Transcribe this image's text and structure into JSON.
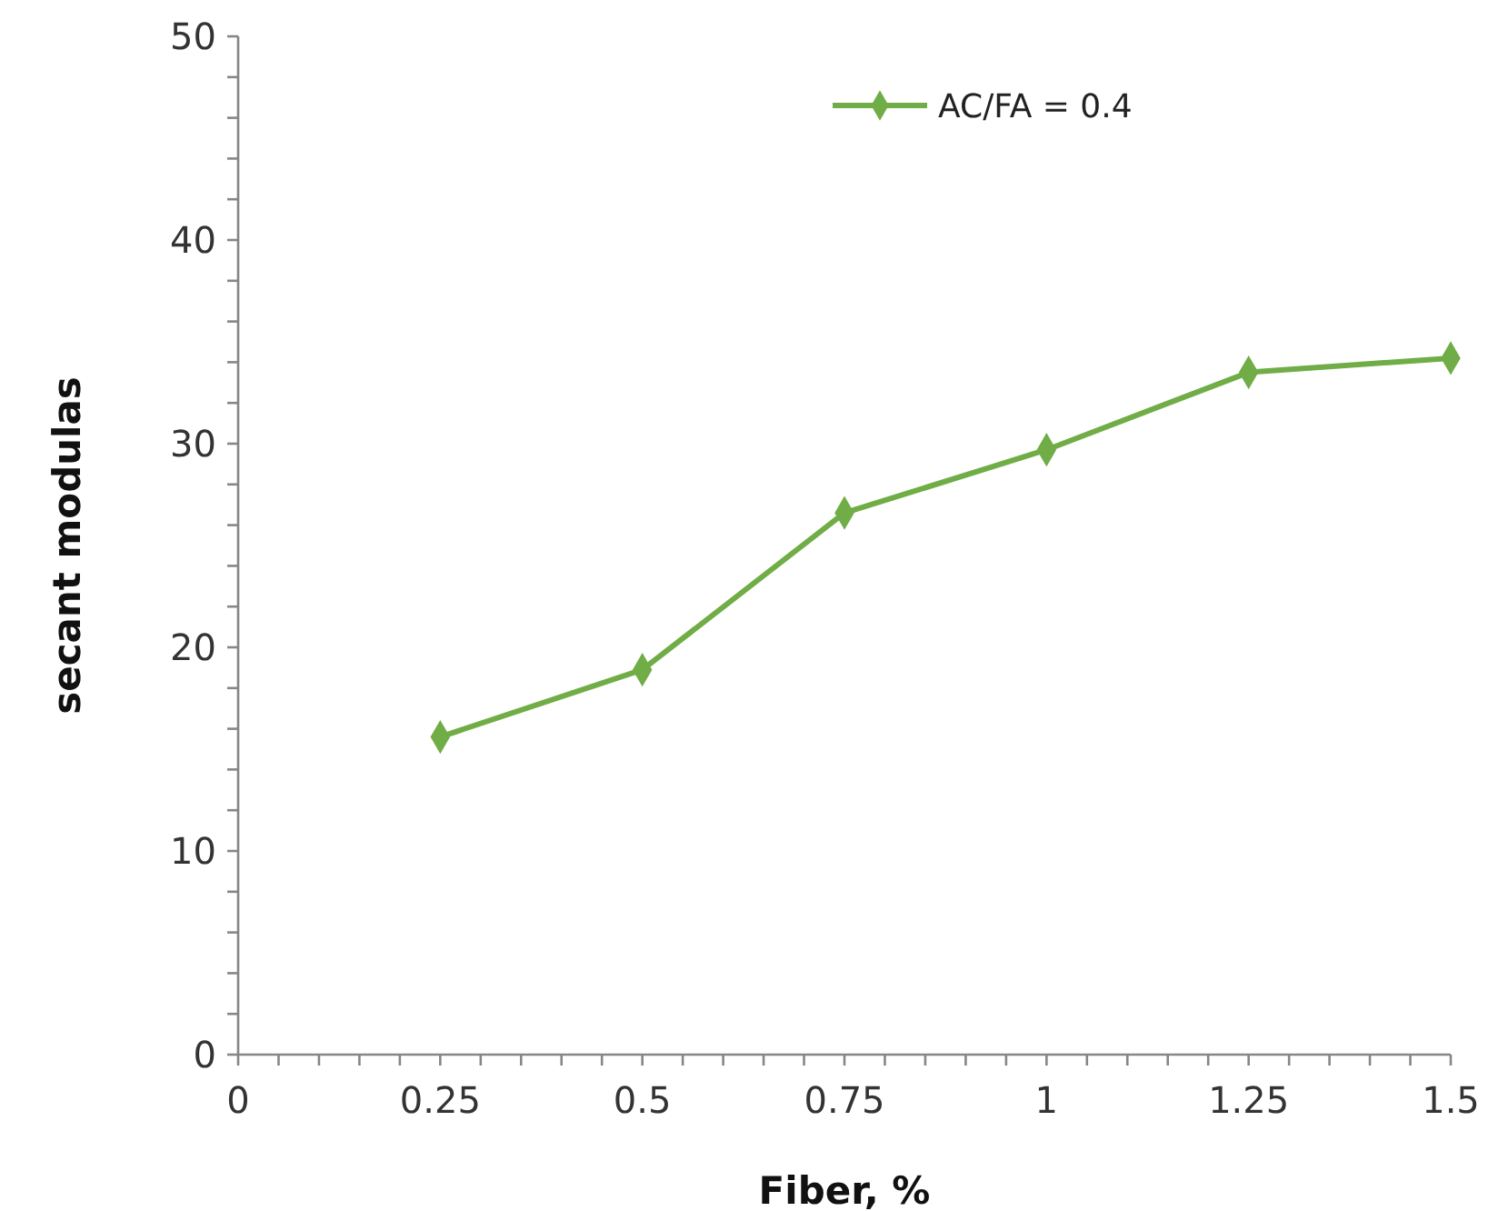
{
  "chart_data": {
    "type": "line",
    "xlabel": "Fiber, %",
    "ylabel": "secant modulas",
    "x": [
      0.25,
      0.5,
      0.75,
      1,
      1.25,
      1.5
    ],
    "series": [
      {
        "name": "AC/FA = 0.4",
        "color": "#70ad47",
        "values": [
          15.6,
          18.9,
          26.6,
          29.7,
          33.5,
          34.2
        ]
      }
    ],
    "xlim": [
      0,
      1.5
    ],
    "xticks": [
      0,
      {
        "value": 0.05,
        "label": null
      },
      {
        "value": 0.1,
        "label": null
      },
      {
        "value": 0.15,
        "label": null
      },
      {
        "value": 0.2,
        "label": null
      },
      0.25,
      {
        "value": 0.3,
        "label": null
      },
      {
        "value": 0.35,
        "label": null
      },
      {
        "value": 0.4,
        "label": null
      },
      {
        "value": 0.45,
        "label": null
      },
      0.5,
      {
        "value": 0.55,
        "label": null
      },
      {
        "value": 0.6,
        "label": null
      },
      {
        "value": 0.65,
        "label": null
      },
      {
        "value": 0.7,
        "label": null
      },
      0.75,
      {
        "value": 0.8,
        "label": null
      },
      {
        "value": 0.85,
        "label": null
      },
      {
        "value": 0.9,
        "label": null
      },
      {
        "value": 0.95,
        "label": null
      },
      1,
      {
        "value": 1.05,
        "label": null
      },
      {
        "value": 1.1,
        "label": null
      },
      {
        "value": 1.15,
        "label": null
      },
      {
        "value": 1.2,
        "label": null
      },
      1.25,
      {
        "value": 1.3,
        "label": null
      },
      {
        "value": 1.35,
        "label": null
      },
      {
        "value": 1.4,
        "label": null
      },
      {
        "value": 1.45,
        "label": null
      },
      1.5
    ],
    "ylim": [
      0,
      50
    ],
    "yticks": [
      0,
      {
        "value": 2,
        "label": null
      },
      {
        "value": 4,
        "label": null
      },
      {
        "value": 6,
        "label": null
      },
      {
        "value": 8,
        "label": null
      },
      10,
      {
        "value": 12,
        "label": null
      },
      {
        "value": 14,
        "label": null
      },
      {
        "value": 16,
        "label": null
      },
      {
        "value": 18,
        "label": null
      },
      20,
      {
        "value": 22,
        "label": null
      },
      {
        "value": 24,
        "label": null
      },
      {
        "value": 26,
        "label": null
      },
      {
        "value": 28,
        "label": null
      },
      30,
      {
        "value": 32,
        "label": null
      },
      {
        "value": 34,
        "label": null
      },
      {
        "value": 36,
        "label": null
      },
      {
        "value": 38,
        "label": null
      },
      40,
      {
        "value": 42,
        "label": null
      },
      {
        "value": 44,
        "label": null
      },
      {
        "value": 46,
        "label": null
      },
      {
        "value": 48,
        "label": null
      },
      50
    ],
    "marker": "diamond",
    "line_style": "solid",
    "legend": "top right",
    "grid": false
  }
}
